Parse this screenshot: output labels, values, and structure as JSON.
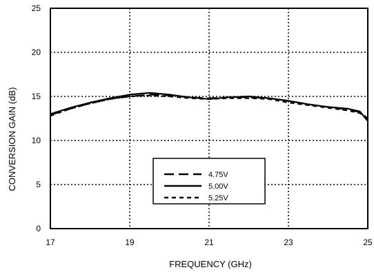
{
  "chart_data": {
    "type": "line",
    "xlabel": "FREQUENCY (GHz)",
    "ylabel": "CONVERSION GAIN (dB)",
    "xlim": [
      17,
      25
    ],
    "ylim": [
      0,
      25
    ],
    "xticks": [
      "17",
      "19",
      "21",
      "23",
      "25"
    ],
    "yticks": [
      "0",
      "5",
      "10",
      "15",
      "20",
      "25"
    ],
    "grid": "dotted",
    "legend_position": "bottom-center",
    "x": [
      17,
      17.5,
      18,
      18.5,
      19,
      19.5,
      20,
      20.5,
      21,
      21.5,
      22,
      22.5,
      23,
      23.5,
      24,
      24.5,
      24.8,
      25
    ],
    "series": [
      {
        "name": "4.75V",
        "style": "long-dash",
        "values": [
          12.9,
          13.6,
          14.2,
          14.7,
          15.0,
          15.2,
          15.1,
          14.9,
          14.8,
          14.9,
          14.9,
          14.8,
          14.5,
          14.1,
          13.8,
          13.5,
          13.2,
          12.5
        ]
      },
      {
        "name": "5.00V",
        "style": "solid",
        "values": [
          13.0,
          13.7,
          14.3,
          14.8,
          15.2,
          15.4,
          15.2,
          14.9,
          14.7,
          14.9,
          15.0,
          14.8,
          14.5,
          14.1,
          13.8,
          13.6,
          13.3,
          12.2
        ]
      },
      {
        "name": "5.25V",
        "style": "short-dash",
        "values": [
          12.8,
          13.6,
          14.2,
          14.7,
          15.0,
          15.1,
          15.0,
          14.8,
          14.7,
          14.8,
          14.8,
          14.7,
          14.3,
          14.0,
          13.7,
          13.4,
          13.1,
          12.4
        ]
      }
    ]
  }
}
